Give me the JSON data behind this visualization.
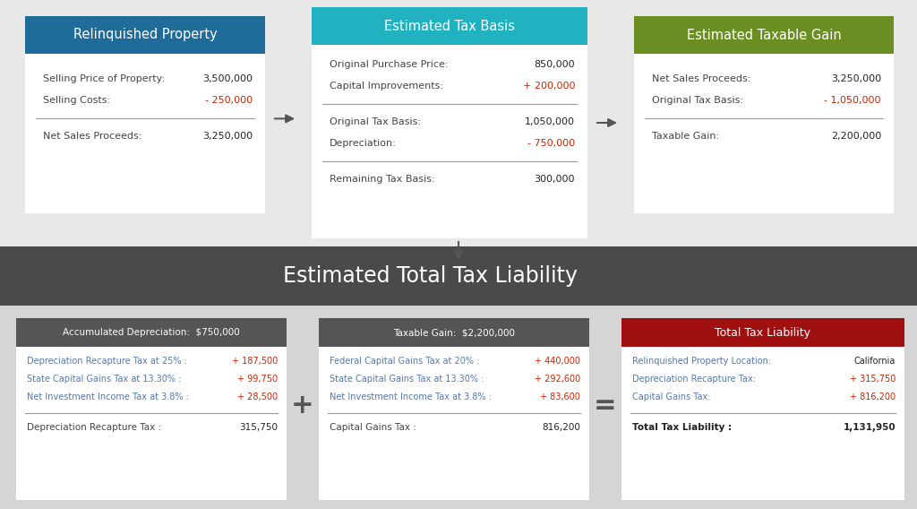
{
  "bg_color": "#e8e8e8",
  "box1_header_color": "#1f6b9a",
  "box2_header_color": "#20b2c0",
  "box3_header_color": "#6b8e23",
  "box1_header_text": "Relinquished Property",
  "box2_header_text": "Estimated Tax Basis",
  "box3_header_text": "Estimated Taxable Gain",
  "bottom_title": "Estimated Total Tax Liability",
  "red_color": "#cc2200",
  "label_color_top": "#444444",
  "value_color": "#222222",
  "label_color_bot": "#5577aa",
  "white": "#ffffff",
  "bottom_title_bg": "#4a4a4a",
  "bottom_content_bg": "#d8d8d8",
  "bot_header_bg": "#555555",
  "bot3_header_bg": "#a01010",
  "bot_text_color": "#5577aa",
  "bot1_header": "Accumulated Depreciation:  $750,000",
  "bot2_header": "Taxable Gain:  $2,200,000",
  "bot3_header": "Total Tax Liability"
}
